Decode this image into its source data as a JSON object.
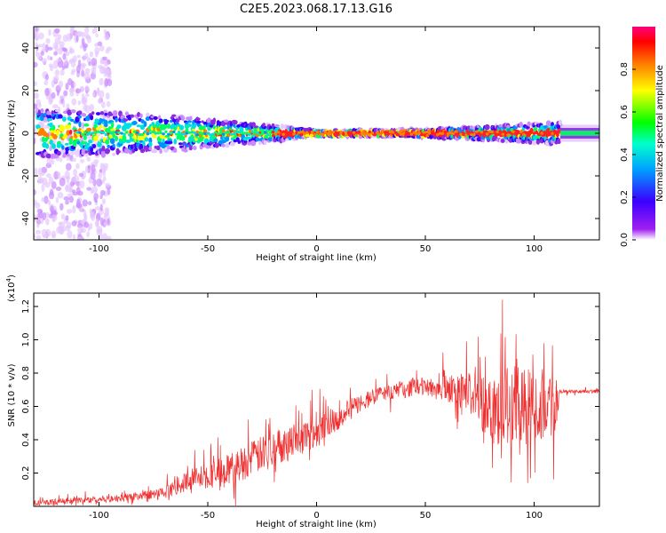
{
  "title": "C2E5.2023.068.17.13.G16",
  "chart_data": [
    {
      "type": "heatmap",
      "xlabel": "Height of straight line (km)",
      "ylabel": "Frequency (Hz)",
      "xlim": [
        -130,
        130
      ],
      "ylim": [
        -50,
        50
      ],
      "x_ticks": [
        "-100",
        "-50",
        "0",
        "50",
        "100"
      ],
      "y_ticks": [
        "-40",
        "-20",
        "0",
        "20",
        "40"
      ],
      "colorbar": {
        "label": "Normalized spectral amplitude",
        "range": [
          0,
          1
        ],
        "ticks": [
          "0.0",
          "0.2",
          "0.4",
          "0.6",
          "0.8"
        ],
        "colormap": "rainbow (violet to red/magenta)"
      },
      "band_half_width_hz": [
        {
          "x": -130,
          "hw": 9
        },
        {
          "x": -100,
          "hw": 8
        },
        {
          "x": -60,
          "hw": 6
        },
        {
          "x": -20,
          "hw": 3
        },
        {
          "x": 0,
          "hw": 1
        },
        {
          "x": 50,
          "hw": 1.5
        },
        {
          "x": 90,
          "hw": 3
        },
        {
          "x": 110,
          "hw": 4
        },
        {
          "x": 130,
          "hw": 3
        }
      ]
    },
    {
      "type": "line",
      "xlabel": "Height of straight line (km)",
      "ylabel": "SNR (10 * v/v)",
      "ylabel_exponent": "(x10",
      "ylabel_exponent_power": "4",
      "ylabel_exponent_close": ")",
      "xlim": [
        -130,
        130
      ],
      "ylim": [
        0,
        1.28
      ],
      "x_ticks": [
        "-100",
        "-50",
        "0",
        "50",
        "100"
      ],
      "y_ticks": [
        "0.2",
        "0.4",
        "0.6",
        "0.8",
        "1.0",
        "1.2"
      ],
      "line_color": "#f03030",
      "envelope": [
        {
          "x": -130,
          "base": 0.02,
          "amp": 0.03
        },
        {
          "x": -90,
          "base": 0.05,
          "amp": 0.04
        },
        {
          "x": -70,
          "base": 0.08,
          "amp": 0.06
        },
        {
          "x": -58,
          "base": 0.16,
          "amp": 0.12
        },
        {
          "x": -40,
          "base": 0.22,
          "amp": 0.18
        },
        {
          "x": -20,
          "base": 0.35,
          "amp": 0.2
        },
        {
          "x": 0,
          "base": 0.45,
          "amp": 0.18
        },
        {
          "x": 20,
          "base": 0.62,
          "amp": 0.1
        },
        {
          "x": 30,
          "base": 0.68,
          "amp": 0.08
        },
        {
          "x": 50,
          "base": 0.72,
          "amp": 0.1
        },
        {
          "x": 70,
          "base": 0.68,
          "amp": 0.22
        },
        {
          "x": 80,
          "base": 0.6,
          "amp": 0.4
        },
        {
          "x": 95,
          "base": 0.6,
          "amp": 0.45
        },
        {
          "x": 110,
          "base": 0.62,
          "amp": 0.35
        },
        {
          "x": 112,
          "base": 0.69,
          "amp": 0.02
        },
        {
          "x": 130,
          "base": 0.69,
          "amp": 0.02
        }
      ]
    }
  ]
}
